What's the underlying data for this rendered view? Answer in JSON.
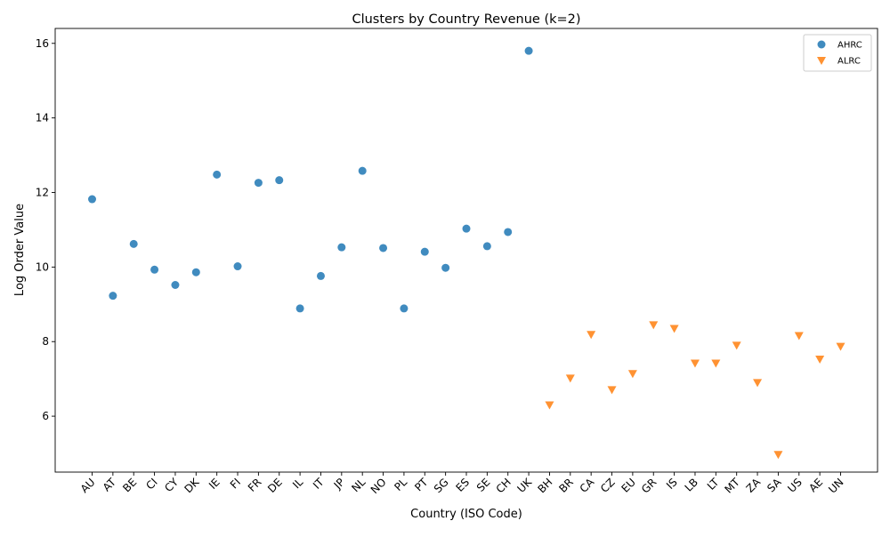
{
  "chart_data": {
    "type": "scatter",
    "title": "Clusters by Country Revenue (k=2)",
    "xlabel": "Country (ISO Code)",
    "ylabel": "Log Order Value",
    "categories": [
      "AU",
      "AT",
      "BE",
      "CI",
      "CY",
      "DK",
      "IE",
      "FI",
      "FR",
      "DE",
      "IL",
      "IT",
      "JP",
      "NL",
      "NO",
      "PL",
      "PT",
      "SG",
      "ES",
      "SE",
      "CH",
      "UK",
      "BH",
      "BR",
      "CA",
      "CZ",
      "EU",
      "GR",
      "IS",
      "LB",
      "LT",
      "MT",
      "ZA",
      "SA",
      "US",
      "AE",
      "UN"
    ],
    "ylim": [
      4.5,
      16.4
    ],
    "yticks": [
      6,
      8,
      10,
      12,
      14,
      16
    ],
    "grid": false,
    "legend_position": "top-right",
    "series": [
      {
        "name": "AHRC",
        "marker": "circle",
        "color": "#1f77b4",
        "points": [
          {
            "x": "AU",
            "y": 11.82
          },
          {
            "x": "AT",
            "y": 9.23
          },
          {
            "x": "BE",
            "y": 10.62
          },
          {
            "x": "CI",
            "y": 9.93
          },
          {
            "x": "CY",
            "y": 9.52
          },
          {
            "x": "DK",
            "y": 9.86
          },
          {
            "x": "IE",
            "y": 12.48
          },
          {
            "x": "FI",
            "y": 10.02
          },
          {
            "x": "FR",
            "y": 12.26
          },
          {
            "x": "DE",
            "y": 12.33
          },
          {
            "x": "IL",
            "y": 8.89
          },
          {
            "x": "IT",
            "y": 9.76
          },
          {
            "x": "JP",
            "y": 10.53
          },
          {
            "x": "NL",
            "y": 12.58
          },
          {
            "x": "NO",
            "y": 10.51
          },
          {
            "x": "PL",
            "y": 8.89
          },
          {
            "x": "PT",
            "y": 10.41
          },
          {
            "x": "SG",
            "y": 9.98
          },
          {
            "x": "ES",
            "y": 11.03
          },
          {
            "x": "SE",
            "y": 10.56
          },
          {
            "x": "CH",
            "y": 10.94
          },
          {
            "x": "UK",
            "y": 15.8
          }
        ]
      },
      {
        "name": "ALRC",
        "marker": "triangle-down",
        "color": "#ff7f0e",
        "points": [
          {
            "x": "BH",
            "y": 6.3
          },
          {
            "x": "BR",
            "y": 7.02
          },
          {
            "x": "CA",
            "y": 8.19
          },
          {
            "x": "CZ",
            "y": 6.71
          },
          {
            "x": "EU",
            "y": 7.14
          },
          {
            "x": "GR",
            "y": 8.45
          },
          {
            "x": "IS",
            "y": 8.35
          },
          {
            "x": "LB",
            "y": 7.42
          },
          {
            "x": "LT",
            "y": 7.42
          },
          {
            "x": "MT",
            "y": 7.9
          },
          {
            "x": "ZA",
            "y": 6.9
          },
          {
            "x": "SA",
            "y": 4.97
          },
          {
            "x": "US",
            "y": 8.16
          },
          {
            "x": "AE",
            "y": 7.53
          },
          {
            "x": "UN",
            "y": 7.87
          }
        ]
      }
    ]
  }
}
